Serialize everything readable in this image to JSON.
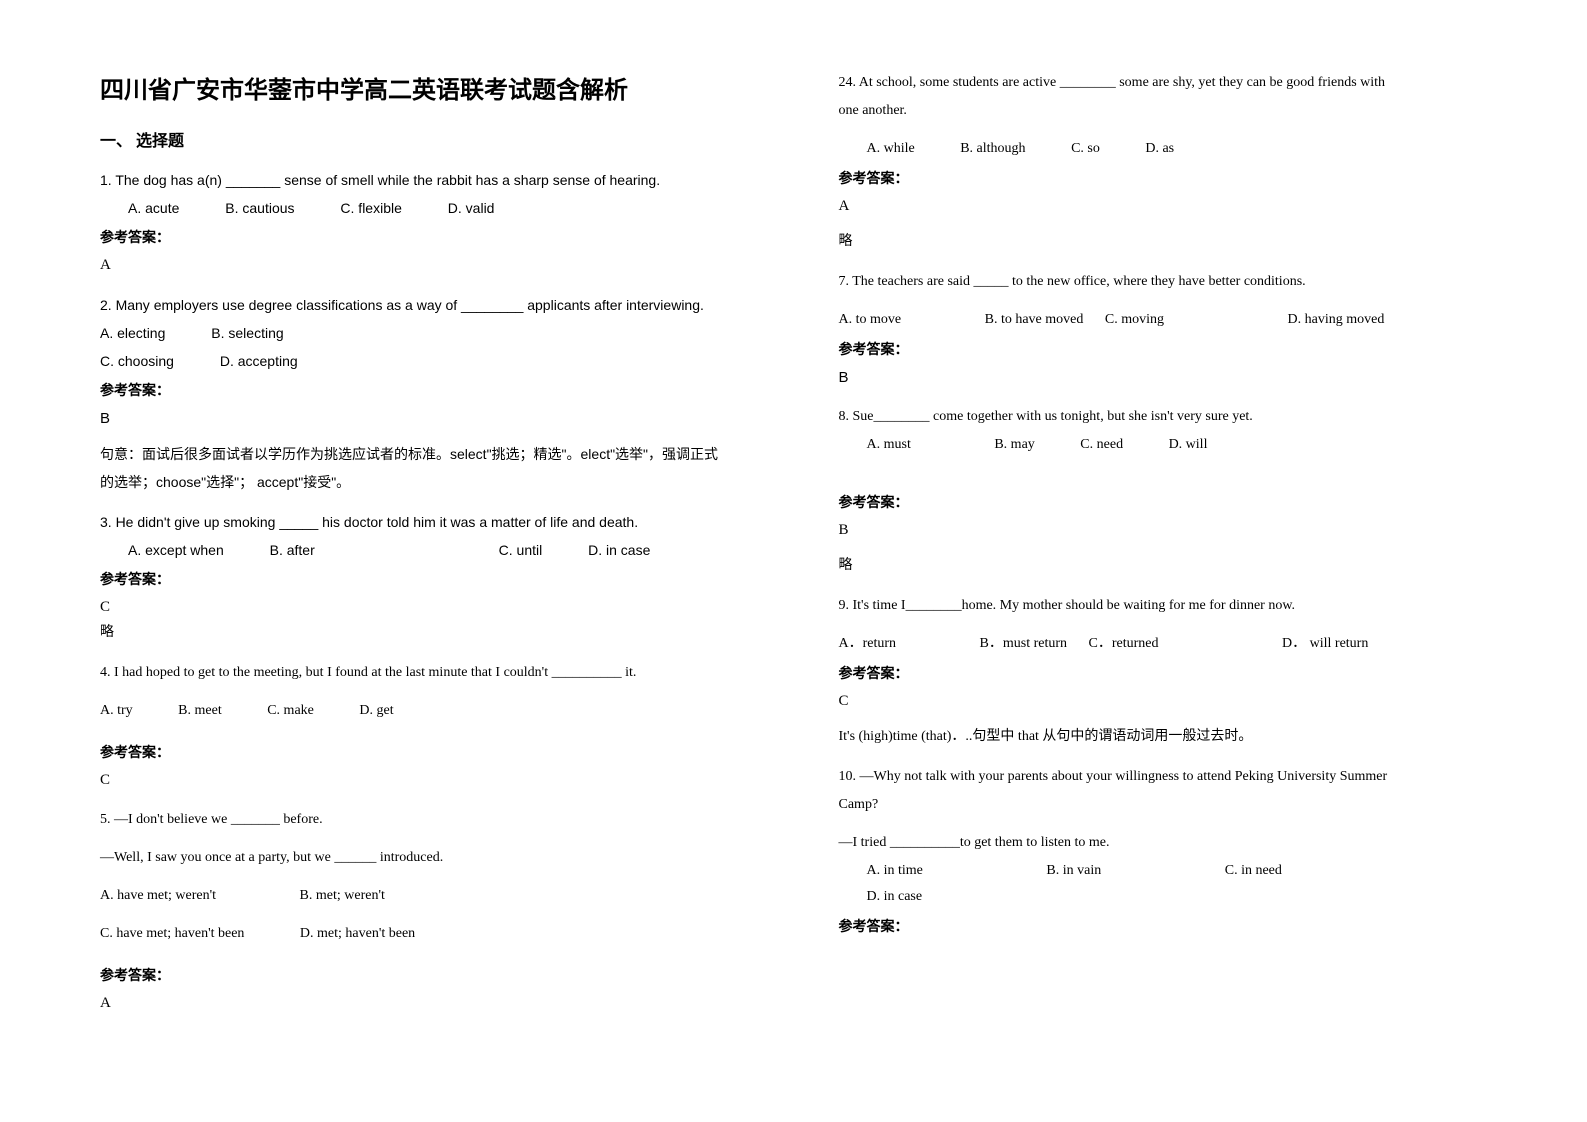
{
  "title": "四川省广安市华蓥市中学高二英语联考试题含解析",
  "section1": "一、 选择题",
  "left": {
    "q1_text": "1. The dog has a(n) _______ sense of smell while the rabbit has a sharp sense of hearing.",
    "q1_opts": {
      "a": "A. acute",
      "b": "B. cautious",
      "c": "C. flexible",
      "d": "D. valid"
    },
    "q1_anslabel": "参考答案：",
    "q1_ans": "A",
    "q2_text": "2. Many employers use degree classifications as a way of ________ applicants after interviewing.",
    "q2_opts1": {
      "a": "A. electing",
      "b": "B. selecting"
    },
    "q2_opts2": {
      "c": "C. choosing",
      "d": "D. accepting"
    },
    "q2_anslabel": "参考答案：",
    "q2_ans": "B",
    "q2_note1": "句意：面试后很多面试者以学历作为挑选应试者的标准。select\"挑选；精选\"。elect\"选举\"，强调正式",
    "q2_note2": "的选举；choose\"选择\"； accept\"接受\"。",
    "q3_text": "3. He didn't give up smoking _____ his doctor told him it was a matter of life and death.",
    "q3_opts": {
      "a": "A. except when",
      "b": "B. after",
      "c": "C. until",
      "d": "D. in case"
    },
    "q3_anslabel": "参考答案：",
    "q3_ans": "C",
    "q3_note": "略",
    "q4_text": "4. I had hoped to get to the meeting, but I found at the last minute that I couldn't __________ it.",
    "q4_opts": {
      "a": "A. try",
      "b": "B. meet",
      "c": "C. make",
      "d": "D. get"
    },
    "q4_anslabel": "参考答案：",
    "q4_ans": "C",
    "q5_line1": "5. —I don't believe we _______ before.",
    "q5_line2": "—Well, I saw you once at a party, but we ______ introduced.",
    "q5_opts1": {
      "a": "A. have met; weren't",
      "b": "B. met; weren't"
    },
    "q5_opts2": {
      "c": "C. have met; haven't been",
      "d": "D. met; haven't been"
    },
    "q5_anslabel": "参考答案：",
    "q5_ans": "A"
  },
  "right": {
    "q6_text1": "24. At school, some students are active ________ some are shy, yet they can be good friends with",
    "q6_text2": "one another.",
    "q6_opts": {
      "a": "A. while",
      "b": "B. although",
      "c": "C. so",
      "d": "D. as"
    },
    "q6_anslabel": "参考答案：",
    "q6_ans": "A",
    "q6_note": "略",
    "q7_text": "7.  The teachers are said _____ to the new office, where they have better conditions.",
    "q7_opts": {
      "a": "A. to move",
      "b": "B. to have moved",
      "c": "C. moving",
      "d": "D. having moved"
    },
    "q7_anslabel": "参考答案：",
    "q7_ans": "B",
    "q8_text": "8. Sue________ come together with us tonight, but she isn't very sure yet.",
    "q8_opts": {
      "a": "A. must",
      "b": "B. may",
      "c": "C. need",
      "d": "D. will"
    },
    "q8_anslabel": "参考答案：",
    "q8_ans": "B",
    "q8_note": "略",
    "q9_text": "9. It's time I________home. My mother should be waiting for me for dinner now.",
    "q9_opts": {
      "a": "A．return",
      "b": "B．must return",
      "c": "C．returned",
      "d": "D． will return"
    },
    "q9_anslabel": "参考答案：",
    "q9_ans": "C",
    "q9_note": "It's (high)time (that)．..句型中 that 从句中的谓语动词用一般过去时。",
    "q10_text1": "10. —Why not talk with your parents about your willingness to attend Peking University Summer",
    "q10_text2": "Camp?",
    "q10_text3": "   —I tried __________to get them to listen to me.",
    "q10_opts": {
      "a": "A. in time",
      "b": "B. in vain",
      "c": "C. in need",
      "d": "D. in case"
    },
    "q10_anslabel": "参考答案："
  }
}
